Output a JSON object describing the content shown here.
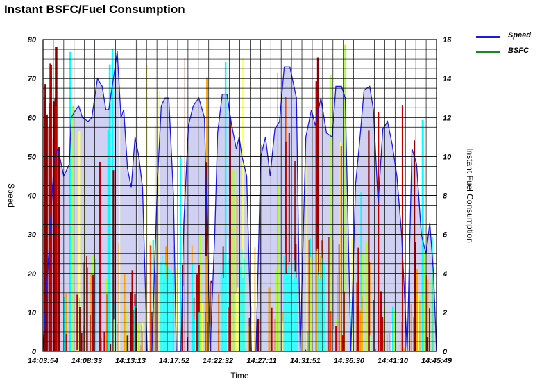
{
  "chart_data": {
    "type": "area",
    "title": "Instant BSFC/Fuel Consumption",
    "xlabel": "Time",
    "ylabel": "Speed",
    "y2label": "Instant Fuel Consumption",
    "ylim": [
      0,
      80
    ],
    "y2lim": [
      0,
      16
    ],
    "grid": true,
    "legend_position": "top-right",
    "x_tick_labels": [
      "14:03:54",
      "14:08:33",
      "14:13:13",
      "14:17:52",
      "14:22:32",
      "14:27:11",
      "14:31:51",
      "14:36:30",
      "14:41:10",
      "14:45:49"
    ],
    "y_ticks": [
      0,
      10,
      20,
      30,
      40,
      50,
      60,
      70,
      80
    ],
    "y2_ticks": [
      0,
      2,
      4,
      6,
      8,
      10,
      12,
      14,
      16
    ],
    "x_range_minutes": [
      0,
      41.92
    ],
    "series": [
      {
        "name": "Speed",
        "axis": "left",
        "color": "#1a1ae6",
        "fill": "#c8c8f0",
        "x_minutes": [
          0,
          1.2,
          1.6,
          2.2,
          2.8,
          3.0,
          3.5,
          3.8,
          4.2,
          4.8,
          5.2,
          5.8,
          6.3,
          6.7,
          7.0,
          7.5,
          7.9,
          8.3,
          8.6,
          9.0,
          9.4,
          9.8,
          10.2,
          10.6,
          11.1,
          11.6,
          12.2,
          12.6,
          13.0,
          13.4,
          13.9,
          14.2,
          14.7,
          15.0,
          15.5,
          16.0,
          16.6,
          17.2,
          17.8,
          18.3,
          18.6,
          19.1,
          19.6,
          20.1,
          20.6,
          20.9,
          21.2,
          21.7,
          22.2,
          22.7,
          23.2,
          23.7,
          24.2,
          24.7,
          25.2,
          25.7,
          26.3,
          27.0,
          27.4,
          28.0,
          28.6,
          29.0,
          29.6,
          30.2,
          30.8,
          31.2,
          31.8,
          32.2,
          32.8,
          33.3,
          33.7,
          34.2,
          34.8,
          35.2,
          35.7,
          36.2,
          36.7,
          37.2,
          37.7,
          38.2,
          38.8,
          39.3,
          39.8,
          40.3,
          40.8,
          41.2,
          41.6,
          41.92
        ],
        "values": [
          0,
          50,
          52,
          45,
          48,
          60,
          62,
          63,
          60,
          59,
          60,
          70,
          68,
          62,
          62,
          70,
          77,
          60,
          62,
          47,
          42,
          55,
          50,
          42,
          0,
          0,
          44,
          63,
          65,
          65,
          40,
          0,
          0,
          33,
          58,
          63,
          65,
          60,
          0,
          30,
          56,
          66,
          66,
          58,
          52,
          55,
          50,
          45,
          0,
          0,
          50,
          55,
          45,
          57,
          59,
          73,
          73,
          65,
          0,
          55,
          62,
          58,
          65,
          56,
          55,
          68,
          68,
          65,
          0,
          43,
          53,
          67,
          68,
          62,
          38,
          57,
          59,
          53,
          45,
          30,
          0,
          52,
          48,
          30,
          25,
          33,
          20,
          0
        ]
      },
      {
        "name": "BSFC",
        "axis": "right",
        "color": "#1a8a1a",
        "values": []
      }
    ]
  },
  "colors": {
    "speed": "#1a1ae6",
    "speed_fill": "#c8c8f0",
    "bsfc": "#1a8a1a",
    "fuel_palette": [
      "#8b0000",
      "#c00000",
      "#ff4500",
      "#ffa500",
      "#ffff66",
      "#adff2f",
      "#00ffff"
    ]
  }
}
